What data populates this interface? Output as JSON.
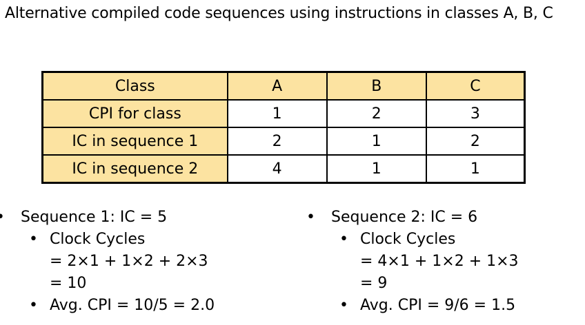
{
  "title": "Alternative compiled code sequences using instructions in classes A, B, C",
  "table": {
    "header": [
      "Class",
      "A",
      "B",
      "C"
    ],
    "rows": [
      [
        "CPI for class",
        "1",
        "2",
        "3"
      ],
      [
        "IC in sequence 1",
        "2",
        "1",
        "2"
      ],
      [
        "IC in sequence 2",
        "4",
        "1",
        "1"
      ]
    ]
  },
  "bullets": {
    "symbol": "•",
    "seq1": {
      "heading": "Sequence 1: IC = 5",
      "clock_label": "Clock Cycles",
      "clock_expr": "= 2×1 + 1×2 + 2×3",
      "clock_result": "= 10",
      "avg_cpi": "Avg. CPI = 10/5 = 2.0"
    },
    "seq2": {
      "heading": "Sequence 2: IC = 6",
      "clock_label": "Clock Cycles",
      "clock_expr": "= 4×1 + 1×2 + 1×3",
      "clock_result": "= 9",
      "avg_cpi": "Avg. CPI = 9/6 = 1.5"
    }
  },
  "colors": {
    "header_fill": "#fce3a1",
    "border": "#000000",
    "text": "#000000"
  }
}
